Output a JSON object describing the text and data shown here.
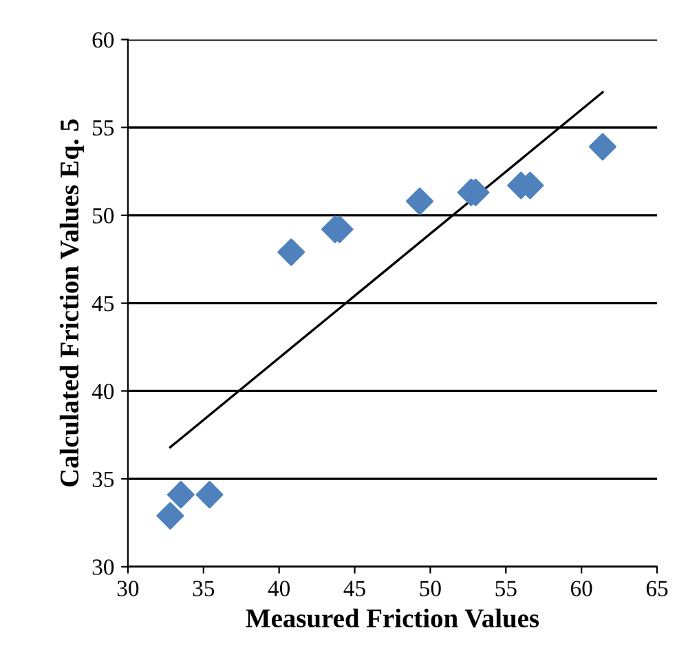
{
  "chart_data": {
    "type": "scatter",
    "xlabel": "Measured Friction Values",
    "ylabel": "Calculated Friction Values Eq. 5",
    "series": [
      {
        "color": "#4f81bd",
        "marker": "diamond",
        "x": [
          32.8,
          33.5,
          35.4,
          40.8,
          43.7,
          44.0,
          49.3,
          52.7,
          53.0,
          56.0,
          56.6,
          61.4
        ],
        "values": [
          32.9,
          34.1,
          34.1,
          47.9,
          49.2,
          49.2,
          50.8,
          51.3,
          51.3,
          51.7,
          51.7,
          53.9
        ]
      },
      {
        "type": "line",
        "color": "#000000",
        "marker": "none",
        "x": [
          32.8,
          61.4
        ],
        "values": [
          36.8,
          57.0
        ]
      }
    ],
    "xlim": [
      30,
      65
    ],
    "xticks": [
      30,
      35,
      40,
      45,
      50,
      55,
      60,
      65
    ],
    "ylim": [
      30,
      60
    ],
    "yticks": [
      30,
      35,
      40,
      45,
      50,
      55,
      60
    ],
    "grid": "y",
    "legend": false
  }
}
